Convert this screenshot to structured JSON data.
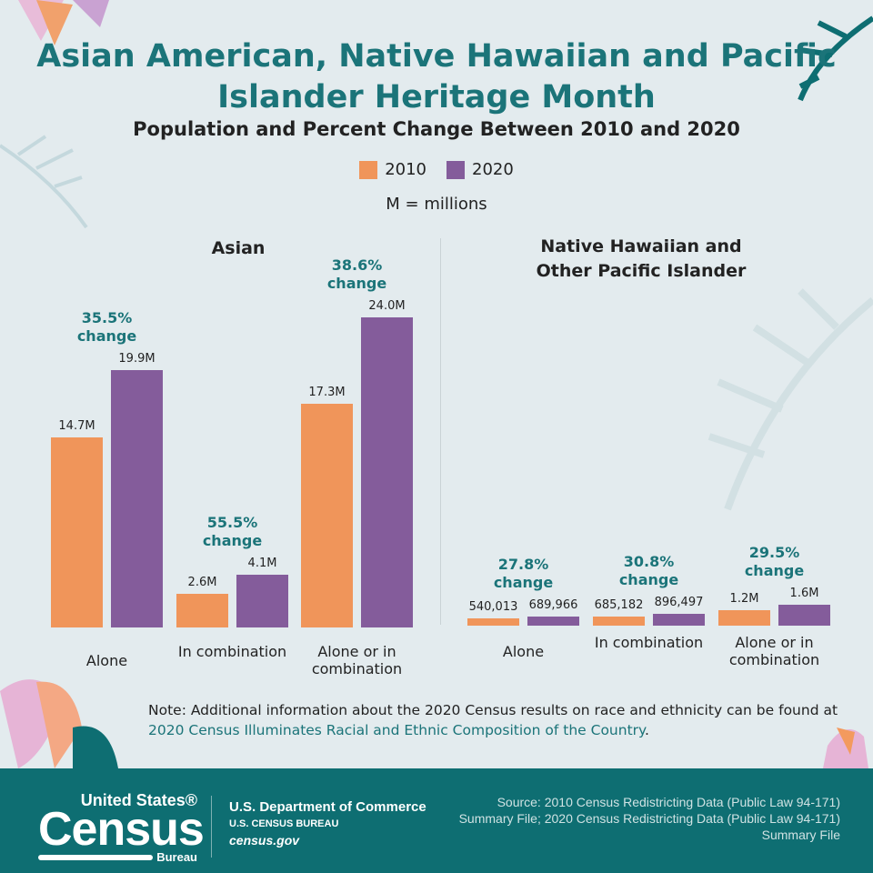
{
  "title": "Asian American, Native Hawaiian and Pacific Islander Heritage Month",
  "chart_data": [
    {
      "type": "bar",
      "title": "Asian",
      "subtitle": "Population and Percent Change Between 2010 and 2020",
      "categories": [
        "Alone",
        "In combination",
        "Alone or in combination"
      ],
      "series": [
        {
          "name": "2010",
          "values": [
            14.7,
            2.6,
            17.3
          ],
          "labels": [
            "14.7M",
            "2.6M",
            "17.3M"
          ]
        },
        {
          "name": "2020",
          "values": [
            19.9,
            4.1,
            24.0
          ],
          "labels": [
            "19.9M",
            "4.1M",
            "24.0M"
          ]
        }
      ],
      "changes": [
        "35.5%",
        "55.5%",
        "38.6%"
      ],
      "change_word": "change",
      "unit": "M = millions"
    },
    {
      "type": "bar",
      "title": "Native Hawaiian and Other Pacific Islander",
      "categories": [
        "Alone",
        "In combination",
        "Alone or in combination"
      ],
      "series": [
        {
          "name": "2010",
          "values": [
            0.540013,
            0.685182,
            1.2
          ],
          "labels": [
            "540,013",
            "685,182",
            "1.2M"
          ]
        },
        {
          "name": "2020",
          "values": [
            0.689966,
            0.896497,
            1.6
          ],
          "labels": [
            "689,966",
            "896,497",
            "1.6M"
          ]
        }
      ],
      "changes": [
        "27.8%",
        "30.8%",
        "29.5%"
      ],
      "change_word": "change"
    }
  ],
  "legend": [
    "2010",
    "2020"
  ],
  "colors": {
    "2010": "#f0955a",
    "2020": "#845c9b",
    "accent": "#1b7479",
    "footer": "#0e6e72"
  },
  "note": {
    "prefix": "Note: Additional information about the 2020 Census results on race and ethnicity can be found at ",
    "link": "2020 Census Illuminates Racial and Ethnic Composition of the Country",
    "suffix": "."
  },
  "footer": {
    "logo_top": "United States®",
    "logo_main": "Census",
    "logo_bottom": "Bureau",
    "dept": "U.S. Department of Commerce",
    "bureau": "U.S. CENSUS BUREAU",
    "site": "census.gov",
    "source": "Source: 2010 Census Redistricting Data (Public Law 94-171) Summary File; 2020 Census Redistricting Data (Public Law 94-171) Summary File"
  }
}
